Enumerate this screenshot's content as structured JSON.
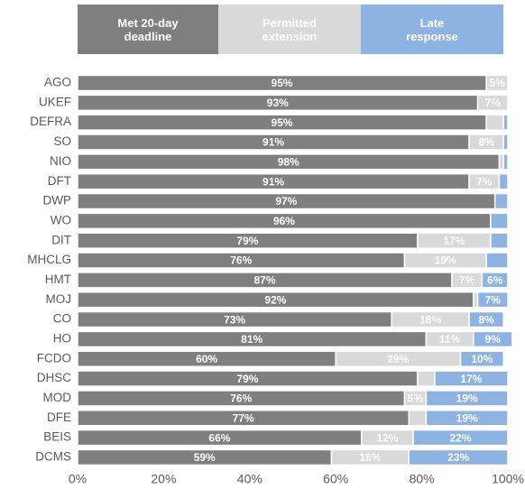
{
  "chart_data": {
    "type": "stacked-bar-horizontal",
    "categories": [
      "AGO",
      "UKEF",
      "DEFRA",
      "SO",
      "NIO",
      "DFT",
      "DWP",
      "WO",
      "DIT",
      "MHCLG",
      "HMT",
      "MOJ",
      "CO",
      "HO",
      "FCDO",
      "DHSC",
      "MOD",
      "DFE",
      "BEIS",
      "DCMS"
    ],
    "series": [
      {
        "name": "Met 20-day deadline",
        "color": "#7f7f7f",
        "values": [
          95,
          93,
          95,
          91,
          98,
          91,
          97,
          96,
          79,
          76,
          87,
          92,
          73,
          81,
          60,
          79,
          76,
          77,
          66,
          59
        ],
        "value_labels": [
          "95%",
          "93%",
          "95%",
          "91%",
          "98%",
          "91%",
          "97%",
          "96%",
          "79%",
          "76%",
          "87%",
          "92%",
          "73%",
          "81%",
          "60%",
          "79%",
          "76%",
          "77%",
          "66%",
          "59%"
        ]
      },
      {
        "name": "Permitted extension",
        "color": "#d9d9d9",
        "values": [
          5,
          7,
          4,
          8,
          1,
          7,
          0,
          0,
          17,
          19,
          7,
          1,
          18,
          11,
          29,
          4,
          5,
          4,
          12,
          18
        ],
        "value_labels": [
          "5%",
          "7%",
          null,
          "8%",
          null,
          "7%",
          null,
          null,
          "17%",
          "19%",
          "7%",
          null,
          "18%",
          "11%",
          "29%",
          null,
          "5%",
          null,
          "12%",
          "18%"
        ]
      },
      {
        "name": "Late response",
        "color": "#8db3e2",
        "values": [
          0,
          0,
          1,
          1,
          1,
          2,
          3,
          4,
          4,
          5,
          6,
          7,
          8,
          9,
          10,
          17,
          19,
          19,
          22,
          23
        ],
        "value_labels": [
          null,
          null,
          null,
          null,
          null,
          null,
          null,
          null,
          null,
          null,
          "6%",
          "7%",
          "8%",
          "9%",
          "10%",
          "17%",
          "19%",
          "19%",
          "22%",
          "23%"
        ]
      }
    ],
    "xlim": [
      0,
      100
    ],
    "xticks": [
      {
        "value": 0,
        "label": "0%"
      },
      {
        "value": 20,
        "label": "20%"
      },
      {
        "value": 40,
        "label": "40%"
      },
      {
        "value": 60,
        "label": "60%"
      },
      {
        "value": 80,
        "label": "80%"
      },
      {
        "value": 100,
        "label": "100%"
      }
    ]
  }
}
